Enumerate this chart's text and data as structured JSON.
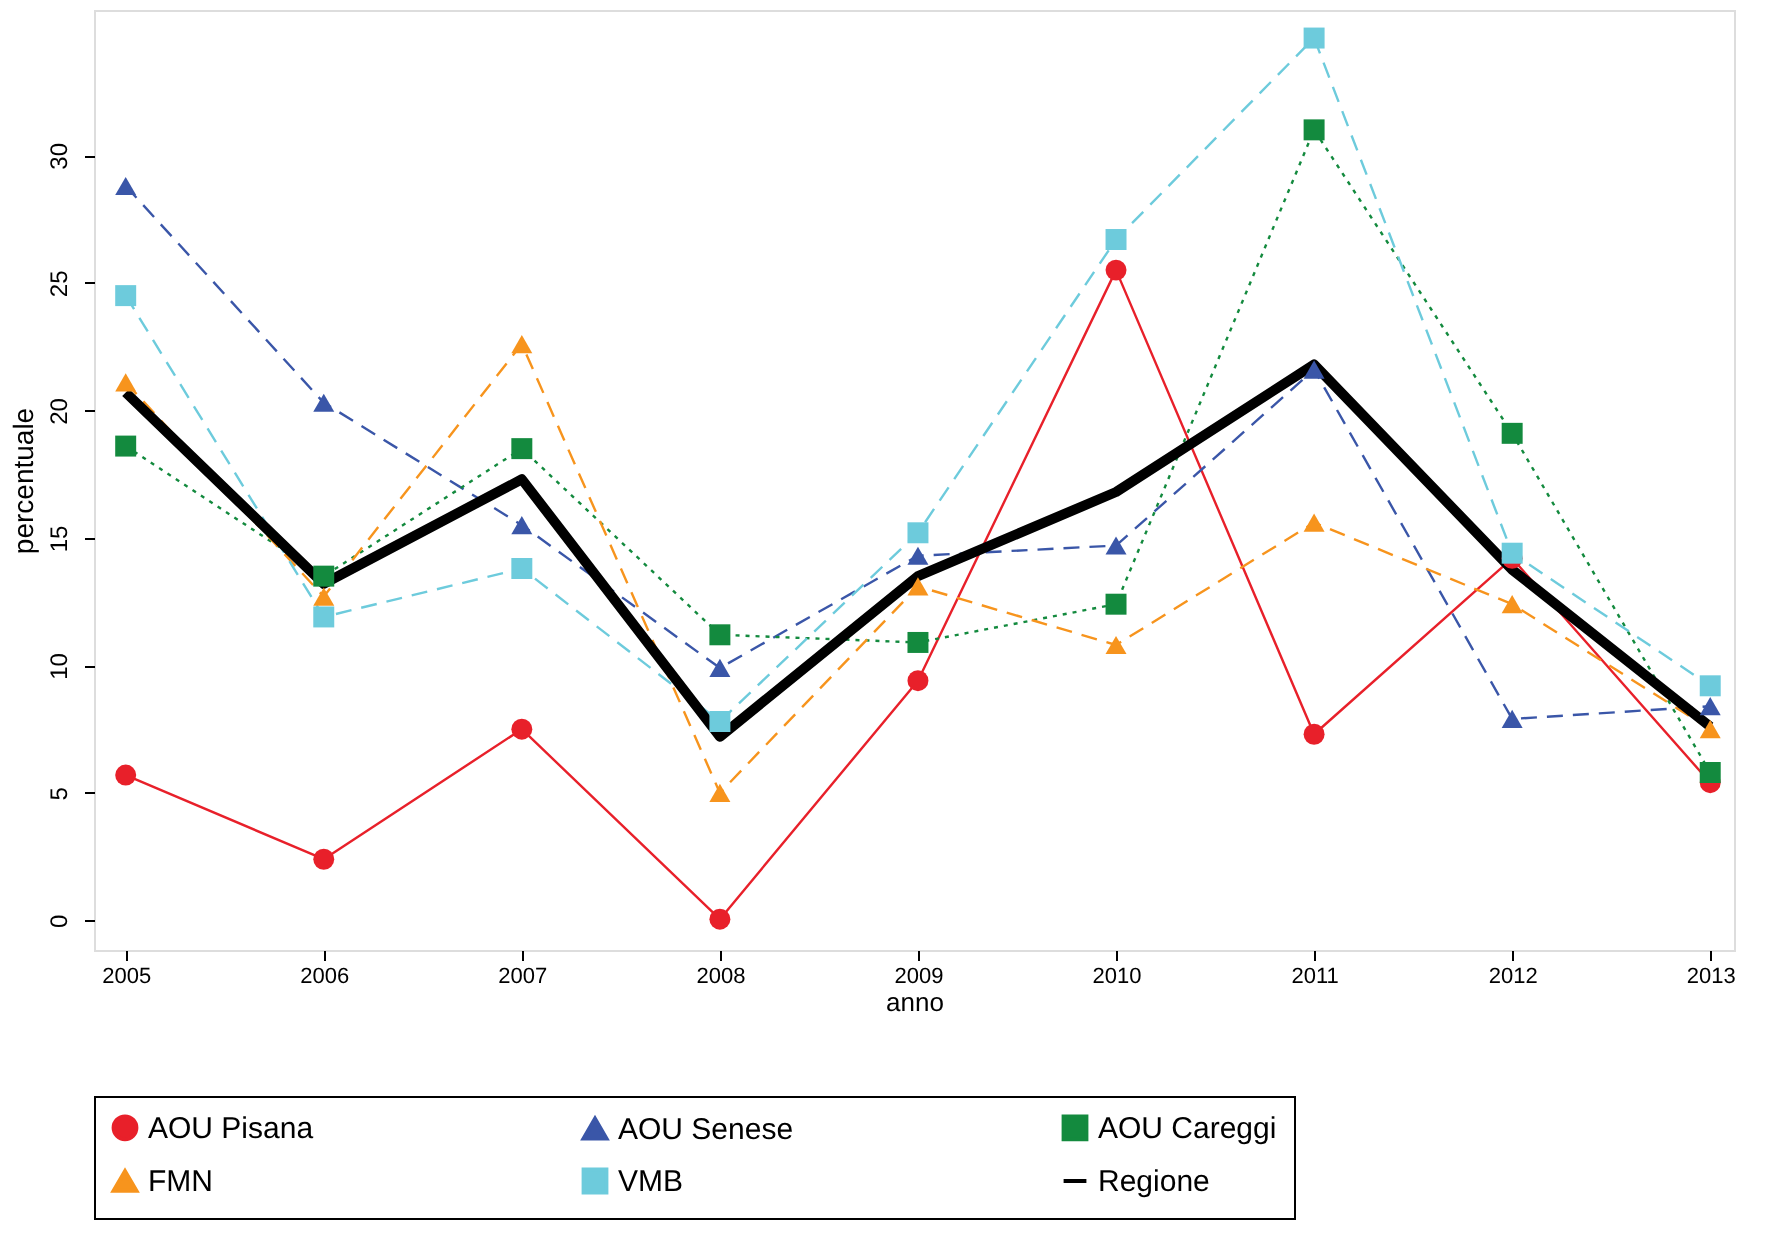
{
  "chart_data": {
    "type": "line",
    "xlabel": "anno",
    "ylabel": "percentuale",
    "x": [
      2005,
      2006,
      2007,
      2008,
      2009,
      2010,
      2011,
      2012,
      2013
    ],
    "xlim": [
      2004.84,
      2013.12
    ],
    "xticks": [
      2005,
      2006,
      2007,
      2008,
      2009,
      2010,
      2011,
      2012,
      2013
    ],
    "ylim": [
      -1.16,
      35.7
    ],
    "yticks": [
      0,
      5,
      10,
      15,
      20,
      25,
      30
    ],
    "grid": false,
    "legend": "bottom",
    "series": [
      {
        "name": "AOU Pisana",
        "color": "#e8202a",
        "marker": "circle",
        "line_style": "solid",
        "values": [
          5.7,
          2.4,
          7.5,
          0.05,
          9.4,
          25.5,
          7.3,
          14.2,
          5.4
        ]
      },
      {
        "name": "AOU Senese",
        "color": "#3a56a8",
        "marker": "triangle",
        "line_style": "dashed",
        "values": [
          28.8,
          20.3,
          15.5,
          9.9,
          14.3,
          14.7,
          21.6,
          7.9,
          8.4
        ]
      },
      {
        "name": "AOU Careggi",
        "color": "#138a3e",
        "marker": "square",
        "line_style": "dotted",
        "values": [
          18.6,
          13.5,
          18.5,
          11.2,
          10.9,
          12.4,
          31.0,
          19.1,
          5.8
        ]
      },
      {
        "name": "FMN",
        "color": "#f7941d",
        "marker": "triangle",
        "line_style": "dashed",
        "values": [
          21.1,
          12.7,
          22.6,
          5.0,
          13.1,
          10.8,
          15.6,
          12.4,
          7.5
        ]
      },
      {
        "name": "VMB",
        "color": "#6dcbdc",
        "marker": "square",
        "line_style": "dashed",
        "values": [
          24.5,
          11.9,
          13.8,
          7.8,
          15.2,
          26.7,
          34.6,
          14.4,
          9.2
        ]
      },
      {
        "name": "Regione",
        "color": "#000000",
        "marker": "none",
        "line_style": "solid",
        "values": [
          20.7,
          13.2,
          17.3,
          7.2,
          13.5,
          16.8,
          21.8,
          13.75,
          7.6
        ]
      }
    ]
  }
}
